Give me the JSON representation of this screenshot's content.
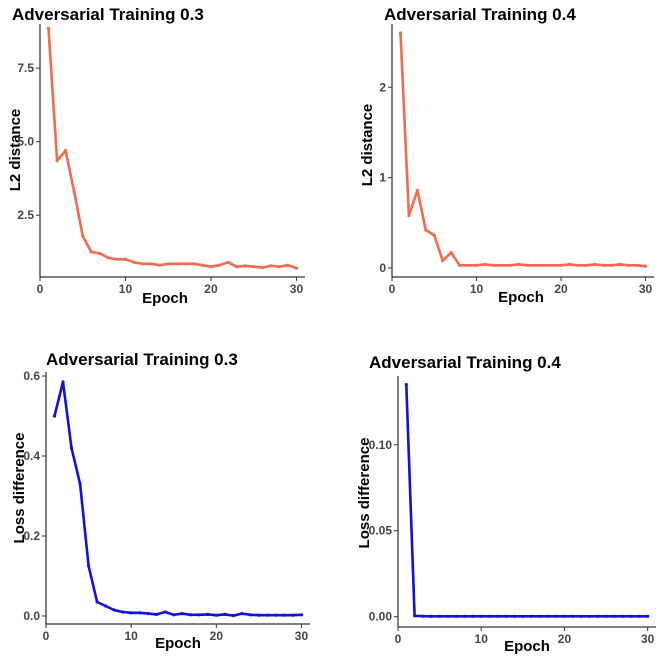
{
  "chart_data": [
    {
      "type": "line",
      "title": "Adversarial Training 0.3",
      "xlabel": "Epoch",
      "ylabel": "L2 distance",
      "xlim": [
        0,
        31
      ],
      "ylim": [
        0.4,
        9.0
      ],
      "xticks": [
        0,
        10,
        20,
        30
      ],
      "yticks": [
        2.5,
        5.0,
        7.5
      ],
      "ytick_labels": [
        "2.5",
        "5.0",
        "7.5"
      ],
      "color": "#f26b4f",
      "series": [
        {
          "x": [
            1,
            2,
            3,
            4,
            5,
            6,
            7,
            8,
            9,
            10,
            11,
            12,
            13,
            14,
            15,
            16,
            17,
            18,
            19,
            20,
            21,
            22,
            23,
            24,
            25,
            26,
            27,
            28,
            29,
            30
          ],
          "values": [
            8.85,
            4.35,
            4.7,
            3.3,
            1.8,
            1.25,
            1.2,
            1.05,
            1.0,
            1.0,
            0.9,
            0.85,
            0.85,
            0.8,
            0.85,
            0.85,
            0.85,
            0.85,
            0.8,
            0.75,
            0.8,
            0.9,
            0.75,
            0.78,
            0.75,
            0.72,
            0.78,
            0.75,
            0.8,
            0.7
          ]
        }
      ]
    },
    {
      "type": "line",
      "title": "Adversarial Training 0.4",
      "xlabel": "Epoch",
      "ylabel": "L2 distance",
      "xlim": [
        0,
        31
      ],
      "ylim": [
        -0.1,
        2.7
      ],
      "xticks": [
        0,
        10,
        20,
        30
      ],
      "yticks": [
        0,
        1,
        2
      ],
      "ytick_labels": [
        "0",
        "1",
        "2"
      ],
      "color": "#f26b4f",
      "series": [
        {
          "x": [
            1,
            2,
            3,
            4,
            5,
            6,
            7,
            8,
            9,
            10,
            11,
            12,
            13,
            14,
            15,
            16,
            17,
            18,
            19,
            20,
            21,
            22,
            23,
            24,
            25,
            26,
            27,
            28,
            29,
            30
          ],
          "values": [
            2.6,
            0.58,
            0.86,
            0.42,
            0.36,
            0.08,
            0.17,
            0.03,
            0.03,
            0.03,
            0.04,
            0.03,
            0.03,
            0.03,
            0.04,
            0.03,
            0.03,
            0.03,
            0.03,
            0.03,
            0.04,
            0.03,
            0.03,
            0.04,
            0.03,
            0.03,
            0.04,
            0.03,
            0.03,
            0.02
          ]
        }
      ]
    },
    {
      "type": "line",
      "title": "Adversarial Training 0.3",
      "xlabel": "Epoch",
      "ylabel": "Loss difference",
      "xlim": [
        0,
        31
      ],
      "ylim": [
        -0.02,
        0.61
      ],
      "xticks": [
        0,
        10,
        20,
        30
      ],
      "yticks": [
        0.0,
        0.2,
        0.4,
        0.6
      ],
      "ytick_labels": [
        "0.0",
        "0.2",
        "0.4",
        "0.6"
      ],
      "color": "#1010e0",
      "series": [
        {
          "x": [
            1,
            2,
            3,
            4,
            5,
            6,
            7,
            8,
            9,
            10,
            11,
            12,
            13,
            14,
            15,
            16,
            17,
            18,
            19,
            20,
            21,
            22,
            23,
            24,
            25,
            26,
            27,
            28,
            29,
            30
          ],
          "values": [
            0.5,
            0.585,
            0.42,
            0.33,
            0.125,
            0.035,
            0.025,
            0.015,
            0.01,
            0.008,
            0.008,
            0.006,
            0.004,
            0.01,
            0.003,
            0.006,
            0.003,
            0.003,
            0.004,
            0.002,
            0.004,
            0.001,
            0.006,
            0.003,
            0.002,
            0.002,
            0.002,
            0.002,
            0.002,
            0.003
          ]
        }
      ]
    },
    {
      "type": "line",
      "title": "Adversarial Training 0.4",
      "xlabel": "Epoch",
      "ylabel": "Loss difference",
      "xlim": [
        0,
        31
      ],
      "ylim": [
        -0.006,
        0.14
      ],
      "xticks": [
        0,
        10,
        20,
        30
      ],
      "yticks": [
        0.0,
        0.05,
        0.1
      ],
      "ytick_labels": [
        "0.00",
        "0.05",
        "0.10"
      ],
      "color": "#1010e0",
      "series": [
        {
          "x": [
            1,
            2,
            3,
            4,
            5,
            6,
            7,
            8,
            9,
            10,
            11,
            12,
            13,
            14,
            15,
            16,
            17,
            18,
            19,
            20,
            21,
            22,
            23,
            24,
            25,
            26,
            27,
            28,
            29,
            30
          ],
          "values": [
            0.135,
            0.0005,
            0.0003,
            0.0002,
            0.0002,
            0.0002,
            0.0002,
            0.0002,
            0.0002,
            0.0002,
            0.0002,
            0.0002,
            0.0002,
            0.0002,
            0.0002,
            0.0002,
            0.0002,
            0.0002,
            0.0002,
            0.0002,
            0.0002,
            0.0002,
            0.0002,
            0.0002,
            0.0002,
            0.0002,
            0.0002,
            0.0002,
            0.0002,
            0.0002
          ]
        }
      ]
    }
  ]
}
